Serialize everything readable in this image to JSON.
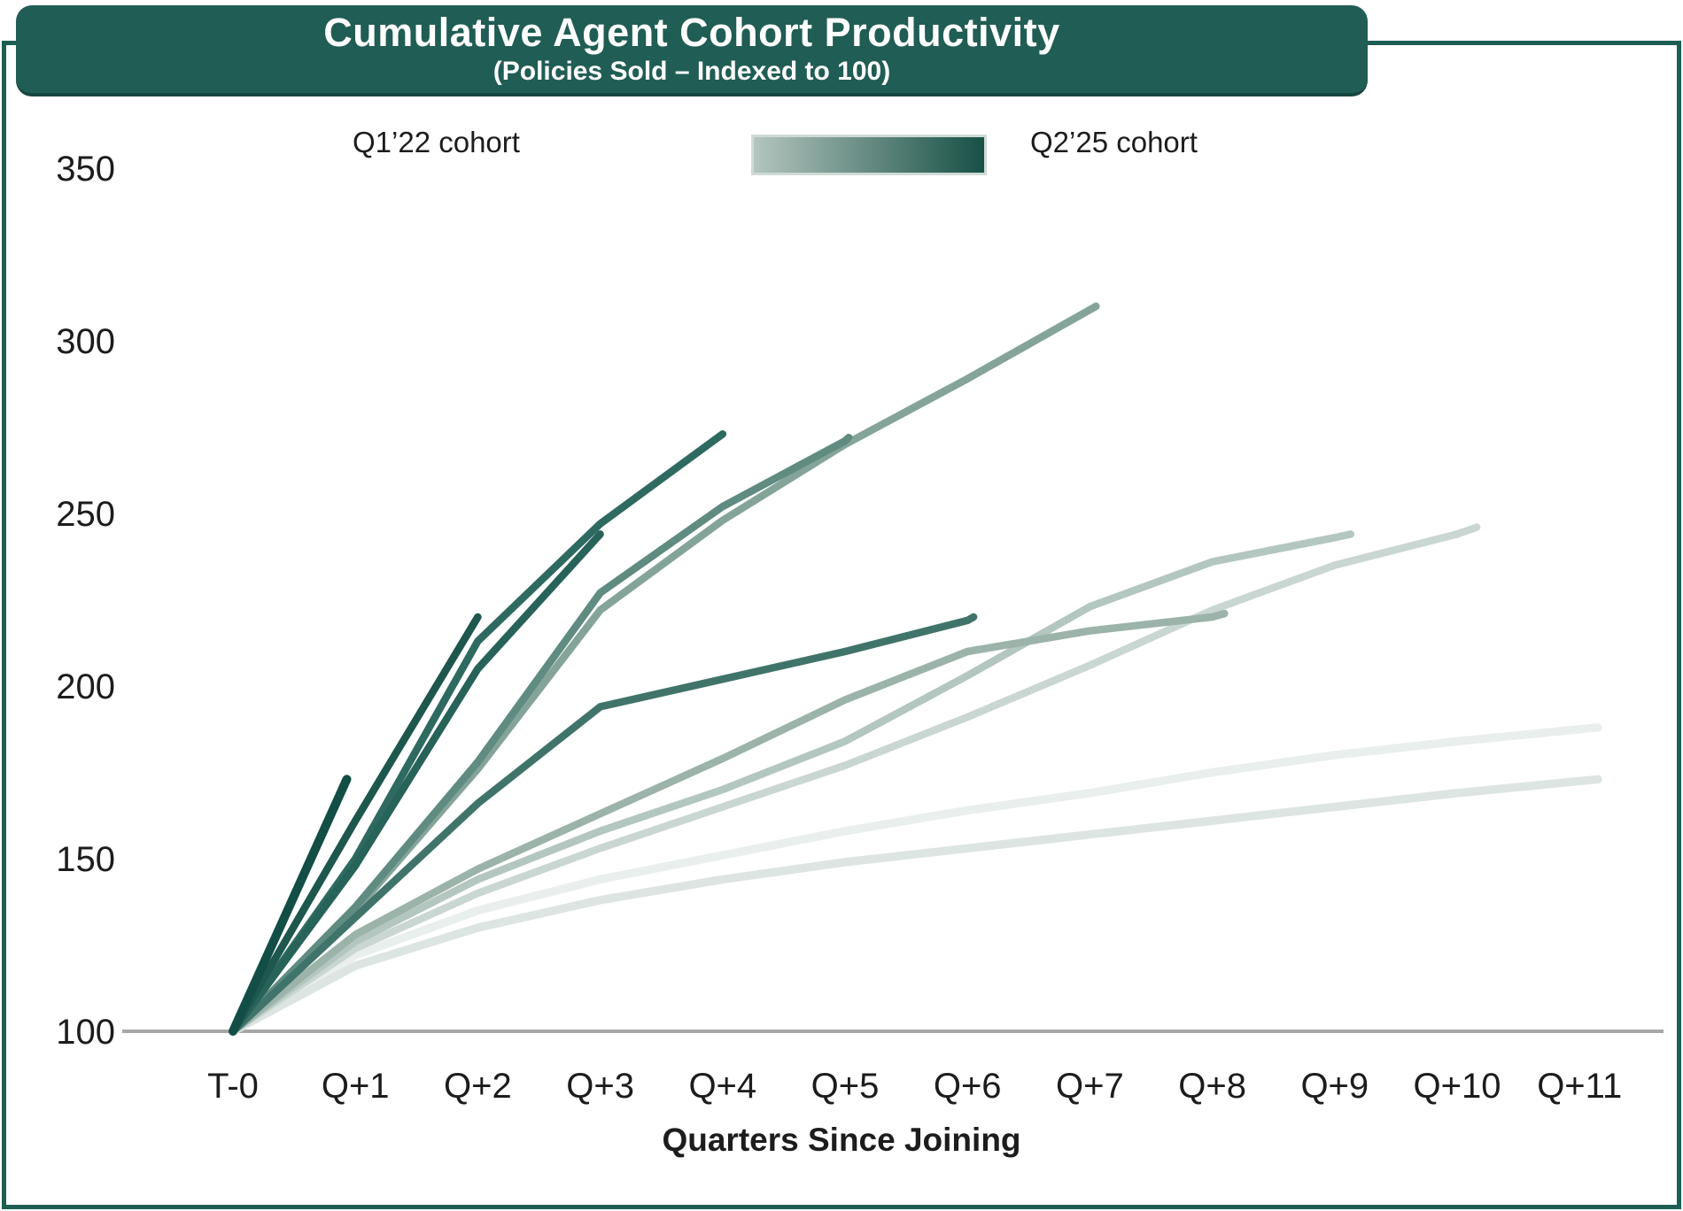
{
  "header": {
    "title": "Cumulative Agent Cohort Productivity",
    "subtitle": "(Policies Sold – Indexed to 100)"
  },
  "legend": {
    "left_label": "Q1’22 cohort",
    "right_label": "Q2’25 cohort",
    "gradient_from": "#b3c5be",
    "gradient_to": "#175046"
  },
  "colors": {
    "banner_bg": "#205d54",
    "frame_border": "#1c5e54",
    "axis_line": "#a6a8a7",
    "text": "#1c1c1c"
  },
  "chart_data": {
    "type": "line",
    "title": "Cumulative Agent Cohort Productivity",
    "subtitle": "(Policies Sold – Indexed to 100)",
    "xlabel": "Quarters Since Joining",
    "ylabel": "",
    "x_tick_labels": [
      "T-0",
      "Q+1",
      "Q+2",
      "Q+3",
      "Q+4",
      "Q+5",
      "Q+6",
      "Q+7",
      "Q+8",
      "Q+9",
      "Q+10",
      "Q+11"
    ],
    "y_ticks": [
      100,
      150,
      200,
      250,
      300,
      350
    ],
    "ylim": [
      100,
      350
    ],
    "grid": false,
    "legend_position": "top",
    "legend_note": "continuous light-to-dark gradient encodes cohort recency from Q1'22 (lightest) to Q2'25 (darkest)",
    "index_base": 100,
    "series": [
      {
        "id": "cohort-shade-01-oldest",
        "color": "#e9efec",
        "points": [
          [
            0,
            100
          ],
          [
            1,
            122
          ],
          [
            2,
            135
          ],
          [
            3,
            144
          ],
          [
            4,
            151
          ],
          [
            5,
            158
          ],
          [
            6,
            164
          ],
          [
            7,
            169
          ],
          [
            8,
            175
          ],
          [
            9,
            180
          ],
          [
            10,
            184
          ],
          [
            11.15,
            188
          ]
        ]
      },
      {
        "id": "cohort-shade-02",
        "color": "#dde5e2",
        "points": [
          [
            0,
            100
          ],
          [
            1,
            119
          ],
          [
            2,
            130
          ],
          [
            3,
            138
          ],
          [
            4,
            144
          ],
          [
            5,
            149
          ],
          [
            6,
            153
          ],
          [
            7,
            157
          ],
          [
            8,
            161
          ],
          [
            9,
            165
          ],
          [
            10,
            169
          ],
          [
            11.15,
            173
          ]
        ]
      },
      {
        "id": "cohort-shade-03",
        "color": "#c9d6d1",
        "points": [
          [
            0,
            100
          ],
          [
            1,
            124
          ],
          [
            2,
            140
          ],
          [
            3,
            153
          ],
          [
            4,
            165
          ],
          [
            5,
            177
          ],
          [
            6,
            191
          ],
          [
            7,
            206
          ],
          [
            8,
            222
          ],
          [
            9,
            235
          ],
          [
            10,
            244
          ],
          [
            10.16,
            246
          ]
        ]
      },
      {
        "id": "cohort-shade-04",
        "color": "#b3c6bf",
        "points": [
          [
            0,
            100
          ],
          [
            1,
            126
          ],
          [
            2,
            144
          ],
          [
            3,
            158
          ],
          [
            4,
            170
          ],
          [
            5,
            184
          ],
          [
            6,
            203
          ],
          [
            7,
            223
          ],
          [
            8,
            236
          ],
          [
            9,
            243
          ],
          [
            9.13,
            244
          ]
        ]
      },
      {
        "id": "cohort-shade-05",
        "color": "#9cb3aa",
        "points": [
          [
            0,
            100
          ],
          [
            1,
            128
          ],
          [
            2,
            147
          ],
          [
            3,
            163
          ],
          [
            4,
            179
          ],
          [
            5,
            196
          ],
          [
            6,
            210
          ],
          [
            7,
            216
          ],
          [
            8,
            220
          ],
          [
            8.1,
            221
          ]
        ]
      },
      {
        "id": "cohort-shade-06",
        "color": "#84a49a",
        "points": [
          [
            0,
            100
          ],
          [
            1,
            135
          ],
          [
            2,
            176
          ],
          [
            3,
            222
          ],
          [
            4,
            248
          ],
          [
            5,
            270
          ],
          [
            6,
            289
          ],
          [
            7,
            309
          ],
          [
            7.05,
            310
          ]
        ]
      },
      {
        "id": "cohort-shade-07",
        "color": "#5f8b81",
        "points": [
          [
            0,
            100
          ],
          [
            1,
            136
          ],
          [
            2,
            178
          ],
          [
            3,
            227
          ],
          [
            4,
            252
          ],
          [
            5,
            271
          ],
          [
            5.03,
            272
          ]
        ]
      },
      {
        "id": "cohort-shade-08",
        "color": "#40746a",
        "points": [
          [
            0,
            100
          ],
          [
            1,
            133
          ],
          [
            2,
            166
          ],
          [
            3,
            194
          ],
          [
            4,
            202
          ],
          [
            5,
            210
          ],
          [
            6,
            219
          ],
          [
            6.05,
            220
          ]
        ]
      },
      {
        "id": "cohort-shade-09",
        "color": "#2e6a60",
        "points": [
          [
            0,
            100
          ],
          [
            1,
            150
          ],
          [
            2,
            213
          ],
          [
            3,
            247
          ],
          [
            4,
            273
          ]
        ]
      },
      {
        "id": "cohort-shade-10",
        "color": "#28635a",
        "points": [
          [
            0,
            100
          ],
          [
            1,
            148
          ],
          [
            2,
            205
          ],
          [
            3,
            244
          ]
        ]
      },
      {
        "id": "cohort-shade-11",
        "color": "#1d574d",
        "points": [
          [
            0,
            100
          ],
          [
            1,
            161
          ],
          [
            2,
            220
          ]
        ]
      },
      {
        "id": "cohort-shade-12-newest",
        "color": "#124e45",
        "points": [
          [
            0,
            100
          ],
          [
            0.93,
            173
          ]
        ]
      }
    ]
  }
}
